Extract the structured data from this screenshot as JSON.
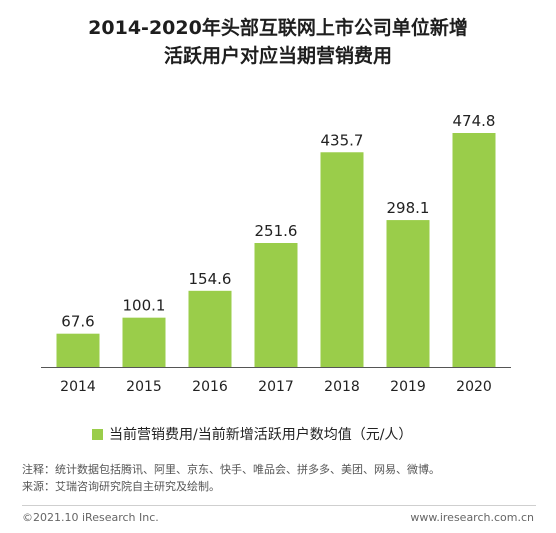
{
  "title": {
    "line1": "2014-2020年头部互联网上市公司单位新增",
    "line2": "活跃用户对应当期营销费用"
  },
  "colors": {
    "bar": "#9acd4a",
    "axis": "#555555"
  },
  "chart_data": {
    "type": "bar",
    "categories": [
      "2014",
      "2015",
      "2016",
      "2017",
      "2018",
      "2019",
      "2020"
    ],
    "series": [
      {
        "name": "当前营销费用/当前新增活跃用户数均值（元/人）",
        "values": [
          67.6,
          100.1,
          154.6,
          251.6,
          435.7,
          298.1,
          474.8
        ]
      }
    ],
    "value_labels": [
      "67.6",
      "100.1",
      "154.6",
      "251.6",
      "435.7",
      "298.1",
      "474.8"
    ],
    "ylim": [
      0,
      474.8
    ],
    "grid": false,
    "legend_position": "bottom"
  },
  "legend": {
    "label": "当前营销费用/当前新增活跃用户数均值（元/人）"
  },
  "notes": {
    "line1": "注释：统计数据包括腾讯、阿里、京东、快手、唯品会、拼多多、美团、网易、微博。",
    "line2": "来源：艾瑞咨询研究院自主研究及绘制。"
  },
  "footer": {
    "copyright": "©2021.10 iResearch Inc.",
    "website": "www.iresearch.com.cn"
  }
}
